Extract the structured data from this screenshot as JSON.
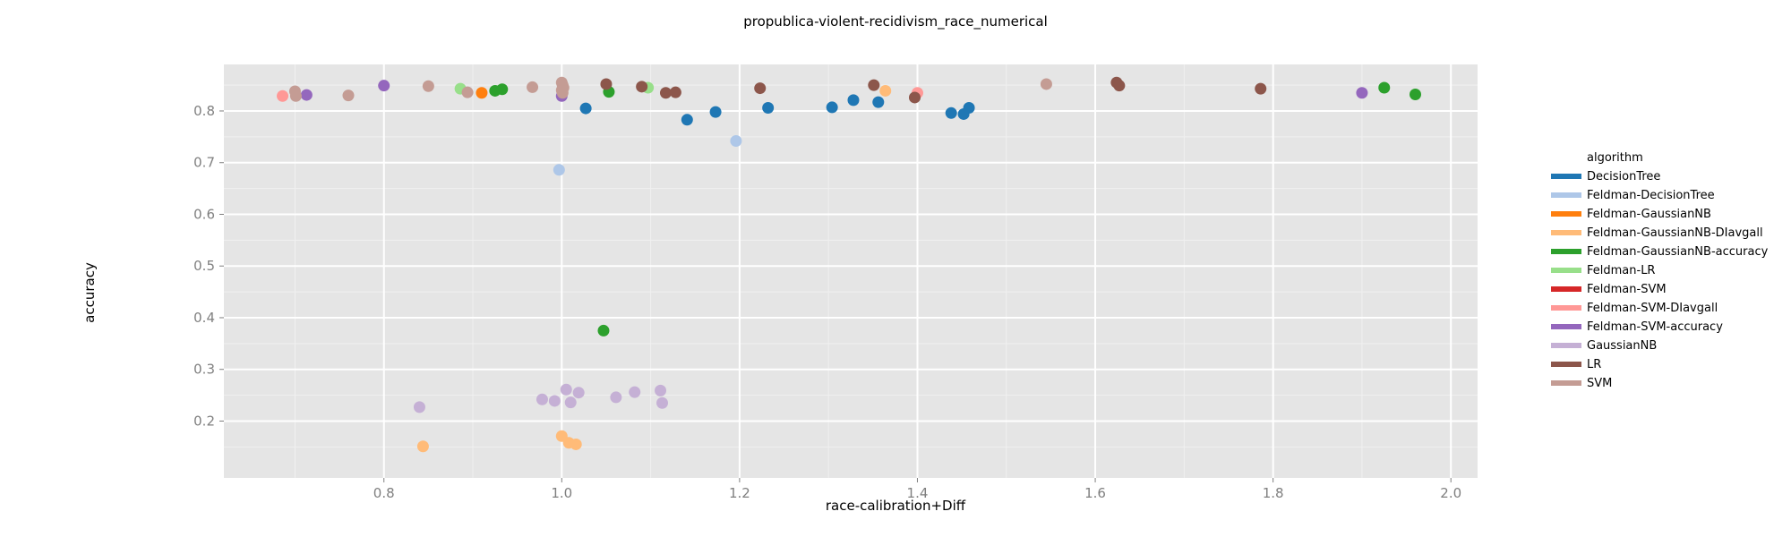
{
  "chart_data": {
    "type": "scatter",
    "title": "propublica-violent-recidivism_race_numerical",
    "xlabel": "race-calibration+Diff",
    "ylabel": "accuracy",
    "xlim": [
      0.62,
      2.03
    ],
    "ylim": [
      0.09,
      0.89
    ],
    "xticks": [
      "0.8",
      "1.0",
      "1.2",
      "1.4",
      "1.6",
      "1.8",
      "2.0"
    ],
    "yticks": [
      "0.2",
      "0.3",
      "0.4",
      "0.5",
      "0.6",
      "0.7",
      "0.8"
    ],
    "grid": true,
    "legend": {
      "title": "algorithm",
      "placement": "right"
    },
    "series": [
      {
        "name": "DecisionTree",
        "color": "#1f77b4",
        "points": [
          [
            1.027,
            0.805
          ],
          [
            1.141,
            0.783
          ],
          [
            1.173,
            0.798
          ],
          [
            1.232,
            0.806
          ],
          [
            1.304,
            0.807
          ],
          [
            1.328,
            0.821
          ],
          [
            1.356,
            0.817
          ],
          [
            1.438,
            0.796
          ],
          [
            1.452,
            0.794
          ],
          [
            1.458,
            0.806
          ]
        ]
      },
      {
        "name": "Feldman-DecisionTree",
        "color": "#aec7e8",
        "points": [
          [
            0.997,
            0.686
          ],
          [
            1.196,
            0.742
          ]
        ]
      },
      {
        "name": "Feldman-GaussianNB",
        "color": "#ff7f0e",
        "points": [
          [
            0.91,
            0.835
          ]
        ]
      },
      {
        "name": "Feldman-GaussianNB-DIavgall",
        "color": "#ffbb78",
        "points": [
          [
            0.844,
            0.151
          ],
          [
            1.0,
            0.171
          ],
          [
            1.008,
            0.158
          ],
          [
            1.016,
            0.155
          ],
          [
            1.364,
            0.839
          ]
        ]
      },
      {
        "name": "Feldman-GaussianNB-accuracy",
        "color": "#2ca02c",
        "points": [
          [
            0.925,
            0.839
          ],
          [
            0.933,
            0.842
          ],
          [
            1.047,
            0.375
          ],
          [
            1.053,
            0.837
          ],
          [
            1.925,
            0.845
          ],
          [
            1.96,
            0.832
          ]
        ]
      },
      {
        "name": "Feldman-LR",
        "color": "#98df8a",
        "points": [
          [
            0.886,
            0.843
          ],
          [
            1.097,
            0.845
          ]
        ]
      },
      {
        "name": "Feldman-SVM",
        "color": "#d62728",
        "points": []
      },
      {
        "name": "Feldman-SVM-DIavgall",
        "color": "#ff9896",
        "points": [
          [
            0.686,
            0.829
          ],
          [
            1.4,
            0.835
          ]
        ]
      },
      {
        "name": "Feldman-SVM-accuracy",
        "color": "#9467bd",
        "points": [
          [
            0.713,
            0.831
          ],
          [
            0.8,
            0.849
          ],
          [
            1.0,
            0.829
          ],
          [
            1.9,
            0.835
          ]
        ]
      },
      {
        "name": "GaussianNB",
        "color": "#c5b0d5",
        "points": [
          [
            0.84,
            0.227
          ],
          [
            0.978,
            0.242
          ],
          [
            0.992,
            0.239
          ],
          [
            1.005,
            0.261
          ],
          [
            1.01,
            0.236
          ],
          [
            1.019,
            0.255
          ],
          [
            1.061,
            0.246
          ],
          [
            1.082,
            0.256
          ],
          [
            1.111,
            0.259
          ],
          [
            1.113,
            0.235
          ]
        ]
      },
      {
        "name": "LR",
        "color": "#8c564b",
        "points": [
          [
            1.05,
            0.852
          ],
          [
            1.09,
            0.847
          ],
          [
            1.117,
            0.835
          ],
          [
            1.128,
            0.836
          ],
          [
            1.223,
            0.844
          ],
          [
            1.351,
            0.85
          ],
          [
            1.397,
            0.826
          ],
          [
            1.624,
            0.855
          ],
          [
            1.627,
            0.849
          ],
          [
            1.786,
            0.843
          ]
        ]
      },
      {
        "name": "SVM",
        "color": "#c49c94",
        "points": [
          [
            0.7,
            0.838
          ],
          [
            0.701,
            0.829
          ],
          [
            0.76,
            0.83
          ],
          [
            0.85,
            0.848
          ],
          [
            0.894,
            0.836
          ],
          [
            0.967,
            0.846
          ],
          [
            1.0,
            0.855
          ],
          [
            1.001,
            0.85
          ],
          [
            1.002,
            0.845
          ],
          [
            1.0,
            0.84
          ],
          [
            1.001,
            0.835
          ],
          [
            1.545,
            0.852
          ]
        ]
      }
    ]
  }
}
